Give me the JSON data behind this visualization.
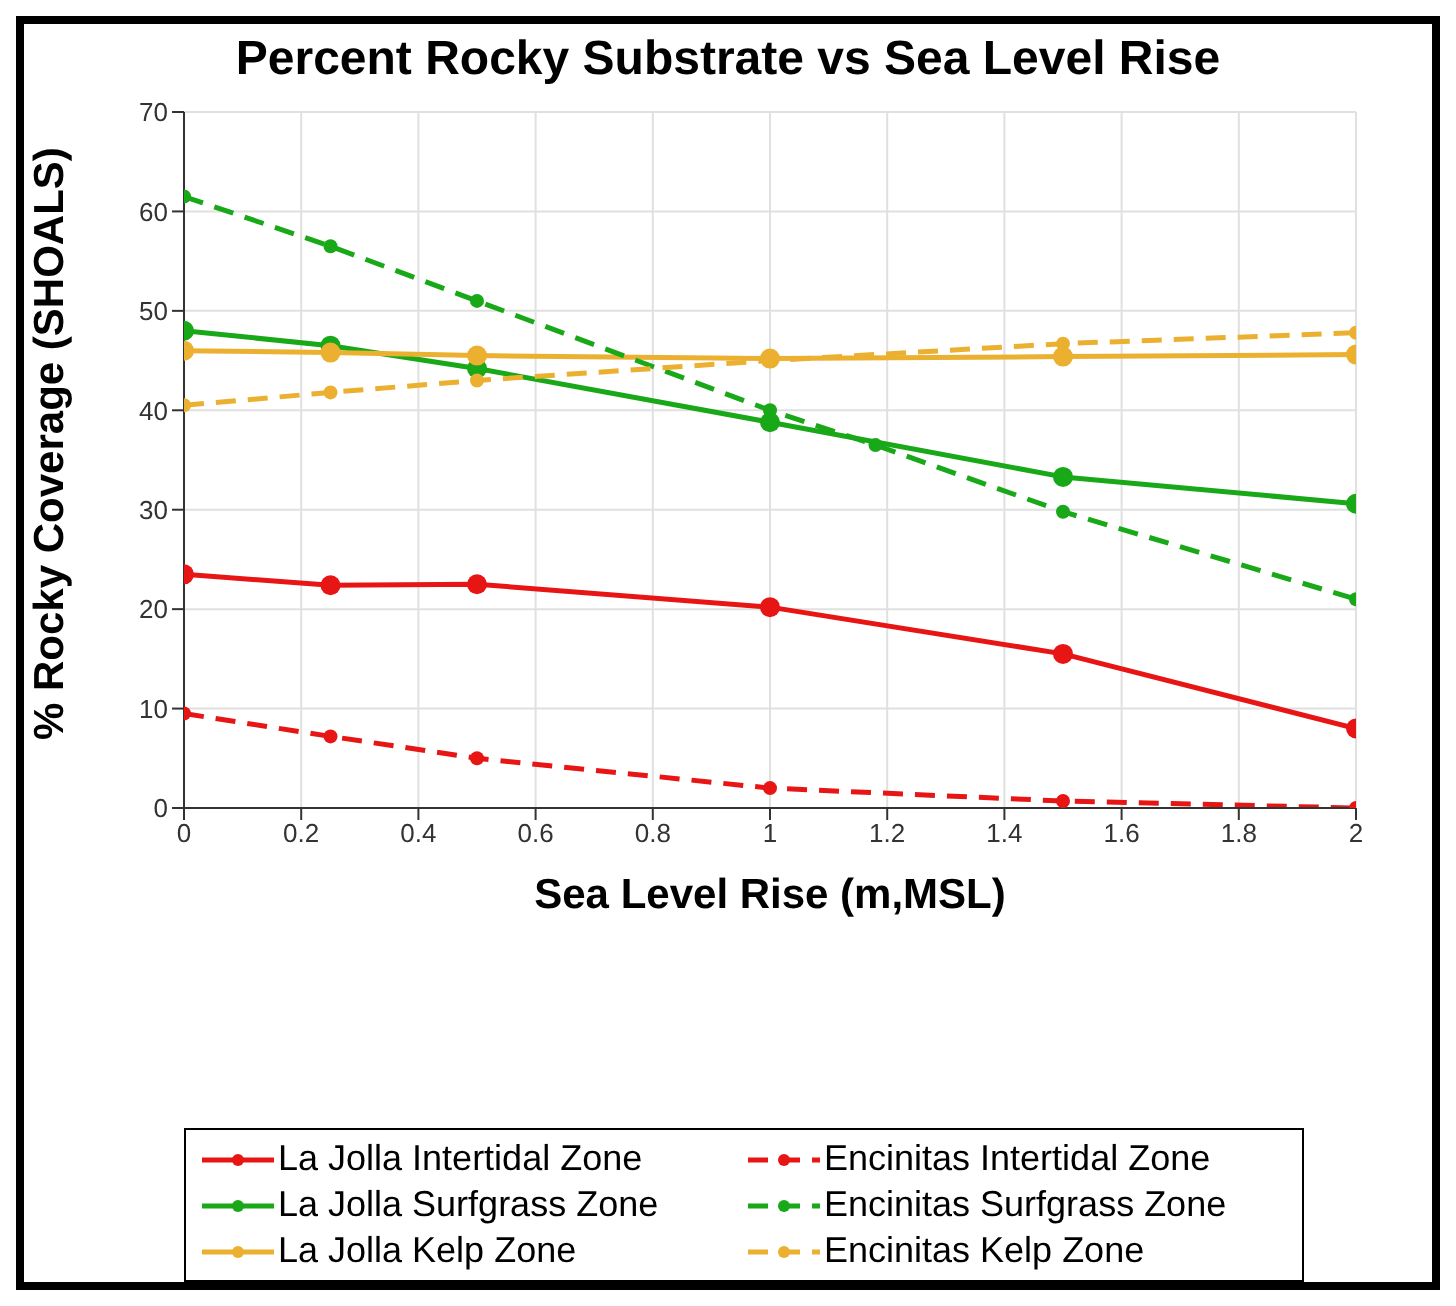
{
  "chart_data": {
    "type": "line",
    "title": "Percent Rocky Substrate vs Sea Level Rise",
    "xlabel": "Sea Level Rise (m,MSL)",
    "ylabel": "% Rocky Coverage (SHOALS)",
    "x": [
      0,
      0.25,
      0.5,
      1,
      1.5,
      2
    ],
    "series": [
      {
        "name": "La Jolla Intertidal Zone",
        "color": "#e81515",
        "line_style": "solid",
        "values": [
          23.5,
          22.4,
          22.5,
          20.2,
          15.5,
          8.0
        ]
      },
      {
        "name": "Encinitas Intertidal Zone",
        "color": "#e81515",
        "line_style": "dashed",
        "values": [
          9.5,
          7.2,
          5.0,
          2.0,
          0.7,
          0
        ]
      },
      {
        "name": "La Jolla Surfgrass Zone",
        "color": "#18a818",
        "line_style": "solid",
        "values": [
          48,
          46.5,
          44.2,
          38.8,
          33.3,
          30.6
        ]
      },
      {
        "name": "Encinitas Surfgrass Zone",
        "color": "#18a818",
        "line_style": "dashed",
        "x": [
          0,
          0.25,
          0.5,
          1,
          1.18,
          1.5,
          2
        ],
        "values": [
          61.5,
          56.5,
          51,
          40,
          36.5,
          29.8,
          21
        ]
      },
      {
        "name": "La Jolla Kelp Zone",
        "color": "#ebb030",
        "line_style": "solid",
        "values": [
          46,
          45.8,
          45.5,
          45.2,
          45.4,
          45.6
        ]
      },
      {
        "name": "Encinitas Kelp Zone",
        "color": "#ebb030",
        "line_style": "dashed",
        "values": [
          40.5,
          41.8,
          43,
          45,
          46.7,
          47.8
        ]
      }
    ],
    "xlim": [
      0,
      2
    ],
    "xticks": [
      0,
      0.2,
      0.4,
      0.6,
      0.8,
      1,
      1.2,
      1.4,
      1.6,
      1.8,
      2
    ],
    "ylim": [
      0,
      70
    ],
    "yticks": [
      0,
      10,
      20,
      30,
      40,
      50,
      60,
      70
    ],
    "grid": true,
    "legend": "bottom",
    "marker": "circle"
  }
}
